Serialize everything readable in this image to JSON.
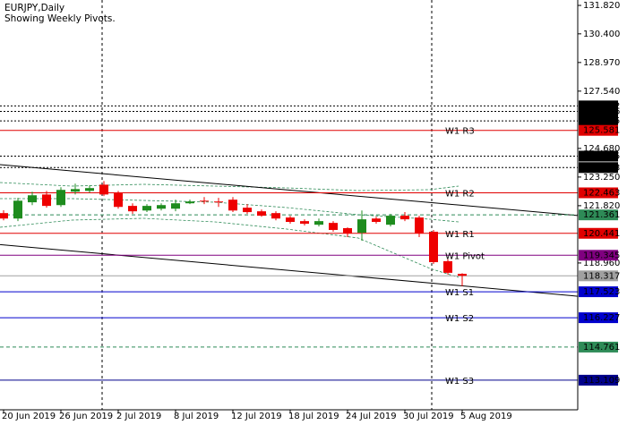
{
  "chart_data": {
    "type": "candlestick",
    "title": "EURJPY,Daily",
    "subtitle": "Showing Weekly Pivots.",
    "categories": [
      "20 Jun 2019",
      null,
      null,
      null,
      "26 Jun 2019",
      null,
      null,
      null,
      "2 Jul 2019",
      null,
      null,
      null,
      "8 Jul 2019",
      null,
      null,
      null,
      "12 Jul 2019",
      null,
      null,
      null,
      "18 Jul 2019",
      null,
      null,
      null,
      "24 Jul 2019",
      null,
      null,
      null,
      "30 Jul 2019",
      null,
      null,
      null,
      "5 Aug 2019"
    ],
    "open": [
      121.45,
      121.18,
      121.99,
      122.38,
      121.85,
      122.52,
      122.56,
      122.87,
      122.47,
      121.81,
      121.58,
      121.67,
      121.67,
      121.94,
      122.07,
      122.03,
      122.12,
      121.72,
      121.54,
      121.45,
      121.23,
      121.05,
      120.87,
      120.96,
      120.7,
      120.47,
      121.18,
      120.87,
      121.32,
      121.23,
      120.52,
      119.05,
      118.42
    ],
    "high": [
      121.59,
      122.21,
      122.52,
      122.56,
      122.74,
      122.92,
      122.83,
      123.05,
      122.56,
      121.94,
      121.9,
      121.94,
      122.12,
      122.12,
      122.25,
      122.21,
      122.25,
      121.9,
      121.63,
      121.54,
      121.32,
      121.14,
      121.18,
      121.05,
      120.74,
      121.58,
      121.27,
      121.41,
      121.5,
      121.32,
      120.61,
      119.14,
      118.45
    ],
    "low": [
      121.09,
      121.05,
      121.85,
      121.72,
      121.76,
      122.38,
      122.47,
      122.3,
      121.67,
      121.41,
      121.5,
      121.58,
      121.54,
      121.9,
      121.9,
      121.76,
      121.5,
      121.41,
      121.27,
      121.09,
      120.92,
      120.83,
      120.78,
      120.52,
      120.25,
      120.07,
      120.92,
      120.78,
      121.05,
      120.25,
      118.91,
      118.38,
      117.8
    ],
    "close": [
      121.18,
      122.07,
      122.34,
      121.81,
      122.61,
      122.65,
      122.7,
      122.38,
      121.76,
      121.54,
      121.81,
      121.85,
      121.94,
      122.03,
      122.03,
      121.99,
      121.58,
      121.5,
      121.32,
      121.18,
      121.01,
      120.92,
      121.05,
      120.61,
      120.43,
      121.14,
      121.01,
      121.32,
      121.14,
      120.43,
      119.0,
      118.47,
      118.32
    ],
    "up_color": "#1e8c1e",
    "down_color": "#ee0000",
    "ylim": [
      111.63,
      132.09
    ],
    "yticks": [
      {
        "value": 131.82,
        "label": "131.820"
      },
      {
        "value": 130.4,
        "label": "130.400"
      },
      {
        "value": 128.97,
        "label": "128.970"
      },
      {
        "value": 127.54,
        "label": "127.540"
      },
      {
        "value": 124.68,
        "label": "124.680"
      },
      {
        "value": 123.25,
        "label": "123.250"
      },
      {
        "value": 121.82,
        "label": "121.820"
      },
      {
        "value": 118.96,
        "label": "118.960"
      }
    ],
    "levels": [
      {
        "value": 126.802,
        "color": "#000000",
        "style": "dotted"
      },
      {
        "value": 126.526,
        "color": "#000000",
        "style": "dotted"
      },
      {
        "value": 126.055,
        "color": "#000000",
        "style": "dotted"
      },
      {
        "value": 125.581,
        "color": "#e00000",
        "style": "solid",
        "name": "W1  R3"
      },
      {
        "value": 124.295,
        "color": "#000000",
        "style": "dotted"
      },
      {
        "value": 123.723,
        "color": "#000000",
        "style": "dotted"
      },
      {
        "value": 122.463,
        "color": "#e00000",
        "style": "solid",
        "name": "W1  R2"
      },
      {
        "value": 121.361,
        "color": "#2e8b57",
        "style": "dashed"
      },
      {
        "value": 120.441,
        "color": "#e00000",
        "style": "solid",
        "name": "W1  R1"
      },
      {
        "value": 119.345,
        "color": "#800080",
        "style": "solid",
        "name": "W1  Pivot"
      },
      {
        "value": 118.317,
        "color": "#a0a0a0",
        "style": "solid"
      },
      {
        "value": 117.523,
        "color": "#0000cd",
        "style": "solid",
        "name": "W1  S1"
      },
      {
        "value": 116.227,
        "color": "#0000cd",
        "style": "solid",
        "name": "W1  S2"
      },
      {
        "value": 114.761,
        "color": "#2e8b57",
        "style": "dashed"
      },
      {
        "value": 113.109,
        "color": "#00008b",
        "style": "solid",
        "name": "W1  S3"
      }
    ],
    "trendlines": [
      {
        "values": [
          123.87,
          121.33
        ]
      },
      {
        "values": [
          119.88,
          117.3
        ]
      }
    ]
  }
}
